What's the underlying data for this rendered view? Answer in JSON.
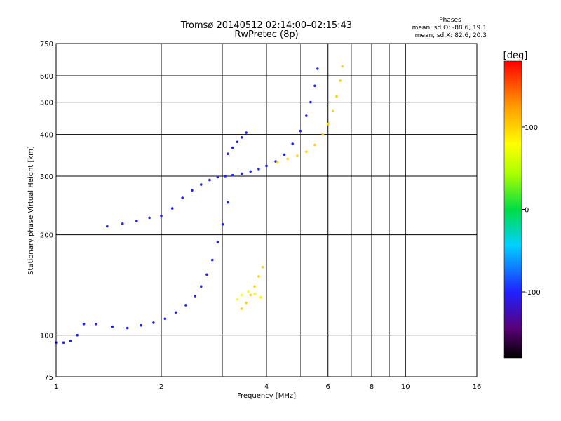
{
  "chart_data": {
    "type": "scatter",
    "title": "Tromsø 20140512 02:14:00–02:15:43",
    "subtitle": "RwPretec (8p)",
    "xlabel": "Frequency [MHz]",
    "ylabel": "Stationary phase Virtual Height [km]",
    "x_scale": "log",
    "y_scale": "log",
    "xlim": [
      1,
      16
    ],
    "ylim": [
      75,
      750
    ],
    "x_ticks": [
      1,
      2,
      4,
      6,
      8,
      10,
      16
    ],
    "y_ticks": [
      75,
      100,
      200,
      300,
      400,
      500,
      600,
      750
    ],
    "grid": true,
    "phase_stats": {
      "title": "Phases",
      "o_line": "mean, sd,O: -88.6, 19.1",
      "x_line": "mean, sd,X:  82.6, 20.3"
    },
    "colorbar": {
      "label": "[deg]",
      "min": -180,
      "max": 180,
      "ticks": [
        -100,
        0,
        100
      ]
    },
    "traces": [
      {
        "mode": "O",
        "phase": -100,
        "points": [
          [
            1.0,
            95
          ],
          [
            1.05,
            95
          ],
          [
            1.1,
            96
          ],
          [
            1.15,
            100
          ],
          [
            1.2,
            108
          ],
          [
            1.3,
            108
          ],
          [
            1.45,
            106
          ],
          [
            1.6,
            105
          ],
          [
            1.75,
            107
          ],
          [
            1.9,
            109
          ],
          [
            2.05,
            112
          ],
          [
            2.2,
            117
          ],
          [
            2.35,
            123
          ],
          [
            2.5,
            131
          ],
          [
            2.6,
            140
          ],
          [
            2.7,
            152
          ],
          [
            2.8,
            168
          ],
          [
            2.9,
            190
          ],
          [
            3.0,
            215
          ],
          [
            3.1,
            250
          ]
        ]
      },
      {
        "mode": "O",
        "phase": -100,
        "points": [
          [
            1.4,
            212
          ],
          [
            1.55,
            216
          ],
          [
            1.7,
            220
          ],
          [
            1.85,
            225
          ],
          [
            2.0,
            228
          ],
          [
            2.15,
            240
          ],
          [
            2.3,
            258
          ],
          [
            2.45,
            272
          ],
          [
            2.6,
            283
          ],
          [
            2.75,
            292
          ],
          [
            2.9,
            298
          ],
          [
            3.05,
            300
          ],
          [
            3.2,
            302
          ],
          [
            3.4,
            305
          ],
          [
            3.6,
            310
          ],
          [
            3.8,
            315
          ],
          [
            4.0,
            322
          ],
          [
            4.25,
            332
          ],
          [
            4.5,
            348
          ],
          [
            4.75,
            375
          ],
          [
            5.0,
            410
          ],
          [
            5.2,
            455
          ],
          [
            5.35,
            500
          ],
          [
            5.5,
            560
          ],
          [
            5.6,
            630
          ]
        ]
      },
      {
        "mode": "O",
        "phase": -100,
        "points": [
          [
            3.1,
            350
          ],
          [
            3.2,
            365
          ],
          [
            3.3,
            380
          ],
          [
            3.4,
            392
          ],
          [
            3.5,
            405
          ]
        ]
      },
      {
        "mode": "X",
        "phase": 100,
        "points": [
          [
            3.4,
            120
          ],
          [
            3.5,
            125
          ],
          [
            3.6,
            132
          ],
          [
            3.7,
            140
          ],
          [
            3.8,
            150
          ],
          [
            3.9,
            160
          ]
        ]
      },
      {
        "mode": "X",
        "phase": 100,
        "points": [
          [
            4.3,
            330
          ],
          [
            4.6,
            338
          ],
          [
            4.9,
            345
          ],
          [
            5.2,
            355
          ],
          [
            5.5,
            372
          ],
          [
            5.8,
            400
          ],
          [
            6.0,
            430
          ],
          [
            6.2,
            470
          ],
          [
            6.35,
            520
          ],
          [
            6.5,
            580
          ],
          [
            6.6,
            640
          ]
        ]
      },
      {
        "mode": "X",
        "phase": 80,
        "points": [
          [
            3.3,
            128
          ],
          [
            3.4,
            132
          ],
          [
            3.55,
            135
          ],
          [
            3.7,
            133
          ],
          [
            3.85,
            130
          ]
        ]
      }
    ]
  }
}
